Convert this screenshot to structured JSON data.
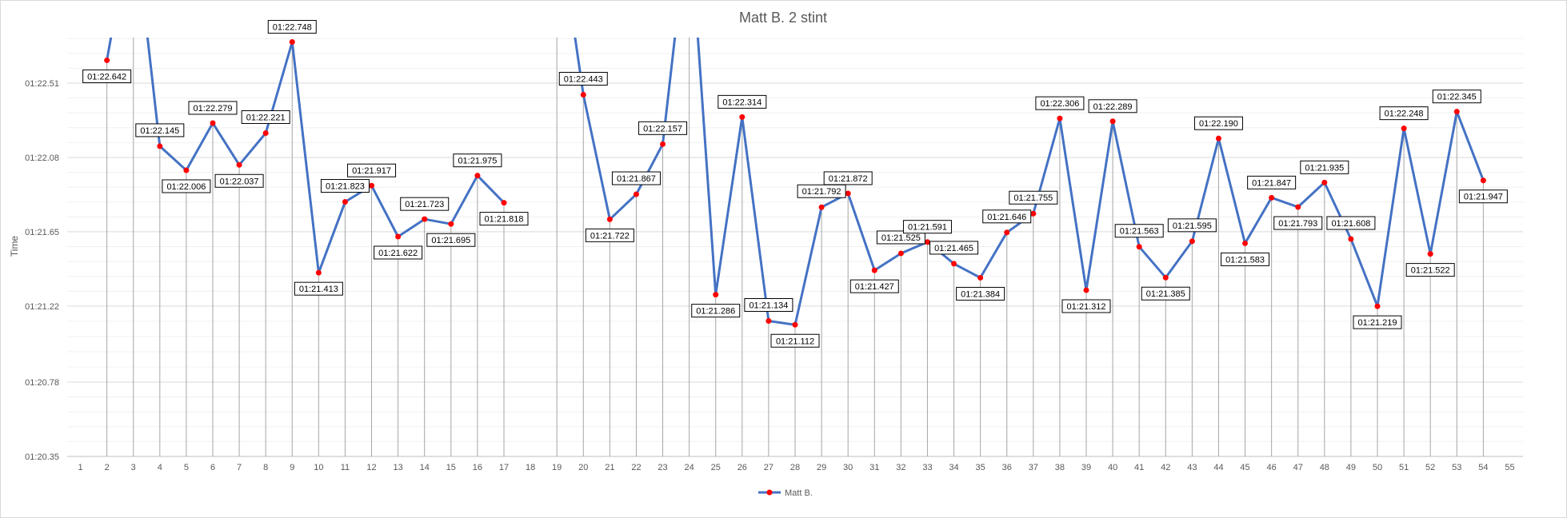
{
  "chart_data": {
    "type": "line",
    "title": "Matt B. 2 stint",
    "xlabel": "",
    "ylabel": "Time",
    "x": [
      1,
      2,
      3,
      4,
      5,
      6,
      7,
      8,
      9,
      10,
      11,
      12,
      13,
      14,
      15,
      16,
      17,
      18,
      19,
      20,
      21,
      22,
      23,
      24,
      25,
      26,
      27,
      28,
      29,
      30,
      31,
      32,
      33,
      34,
      35,
      36,
      37,
      38,
      39,
      40,
      41,
      42,
      43,
      44,
      45,
      46,
      47,
      48,
      49,
      50,
      51,
      52,
      53,
      54,
      55
    ],
    "x_tick_labels": [
      "1",
      "2",
      "3",
      "4",
      "5",
      "6",
      "7",
      "8",
      "9",
      "10",
      "11",
      "12",
      "13",
      "14",
      "15",
      "16",
      "17",
      "18",
      "19",
      "20",
      "21",
      "22",
      "23",
      "24",
      "25",
      "26",
      "27",
      "28",
      "29",
      "30",
      "31",
      "32",
      "33",
      "34",
      "35",
      "36",
      "37",
      "38",
      "39",
      "40",
      "41",
      "42",
      "43",
      "44",
      "45",
      "46",
      "47",
      "48",
      "49",
      "50",
      "51",
      "52",
      "53",
      "54",
      "55"
    ],
    "y_ticks": [
      80.35,
      80.78,
      81.22,
      81.65,
      82.08,
      82.51
    ],
    "y_tick_labels": [
      "01:20.35",
      "01:20.78",
      "01:21.22",
      "01:21.65",
      "01:22.08",
      "01:22.51"
    ],
    "ylim": [
      80.35,
      82.51
    ],
    "grid": true,
    "legend_position": "bottom",
    "series": [
      {
        "name": "Matt B.",
        "color": "#4472C4",
        "marker_color": "#FF0000",
        "x": [
          2,
          3,
          4,
          5,
          6,
          7,
          8,
          9,
          10,
          11,
          12,
          13,
          14,
          15,
          16,
          17,
          18,
          19,
          20,
          21,
          22,
          23,
          24,
          25,
          26,
          27,
          28,
          29,
          30,
          31,
          32,
          33,
          34,
          35,
          36,
          37,
          38,
          39,
          40,
          41,
          42,
          43,
          44,
          45,
          46,
          47,
          48,
          49,
          50,
          51,
          52,
          53,
          54
        ],
        "values": [
          82.642,
          83.5,
          82.145,
          82.006,
          82.279,
          82.037,
          82.221,
          82.748,
          81.413,
          81.823,
          81.917,
          81.622,
          81.723,
          81.695,
          81.975,
          81.818,
          null,
          83.5,
          82.443,
          81.722,
          81.867,
          82.157,
          83.5,
          81.286,
          82.314,
          81.134,
          81.112,
          81.792,
          81.872,
          81.427,
          81.525,
          81.591,
          81.465,
          81.384,
          81.646,
          81.755,
          82.306,
          81.312,
          82.289,
          81.563,
          81.385,
          81.595,
          82.19,
          81.583,
          81.847,
          81.793,
          81.935,
          81.608,
          81.219,
          82.248,
          81.522,
          82.345,
          81.947
        ],
        "labels": [
          "01:22.642",
          "",
          "01:22.145",
          "01:22.006",
          "01:22.279",
          "01:22.037",
          "01:22.221",
          "01:22.748",
          "01:21.413",
          "01:21.823",
          "01:21.917",
          "01:21.622",
          "01:21.723",
          "01:21.695",
          "01:21.975",
          "01:21.818",
          "",
          "",
          "01:22.443",
          "01:21.722",
          "01:21.867",
          "01:22.157",
          "",
          "01:21.286",
          "01:22.314",
          "01:21.134",
          "01:21.112",
          "01:21.792",
          "01:21.872",
          "01:21.427",
          "01:21.525",
          "01:21.591",
          "01:21.465",
          "01:21.384",
          "01:21.646",
          "01:21.755",
          "01:22.306",
          "01:21.312",
          "01:22.289",
          "01:21.563",
          "01:21.385",
          "01:21.595",
          "01:22.190",
          "01:21.583",
          "01:21.847",
          "01:21.793",
          "01:21.935",
          "01:21.608",
          "01:21.219",
          "01:22.248",
          "01:21.522",
          "01:22.345",
          "01:21.947"
        ]
      }
    ]
  }
}
